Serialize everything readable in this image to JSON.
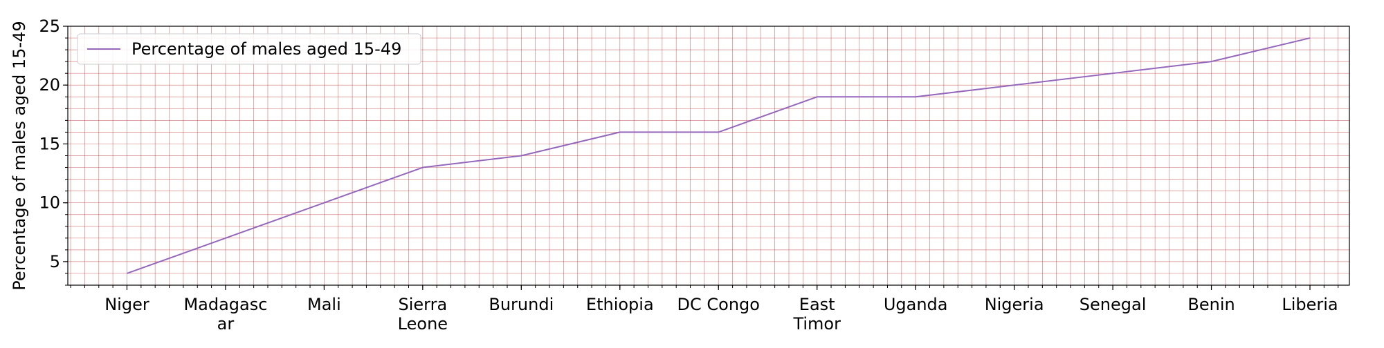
{
  "chart_data": {
    "type": "line",
    "title": "",
    "xlabel": "",
    "ylabel": "Percentage of males aged 15-49",
    "categories": [
      [
        "Niger"
      ],
      [
        "Madagasc",
        "ar"
      ],
      [
        "Mali"
      ],
      [
        "Sierra",
        "Leone"
      ],
      [
        "Burundi"
      ],
      [
        "Ethiopia"
      ],
      [
        "DC Congo"
      ],
      [
        "East",
        "Timor"
      ],
      [
        "Uganda"
      ],
      [
        "Nigeria"
      ],
      [
        "Senegal"
      ],
      [
        "Benin"
      ],
      [
        "Liberia"
      ]
    ],
    "series": [
      {
        "name": "Percentage of males aged 15-49",
        "color": "#9467bd",
        "values": [
          4,
          7,
          10,
          13,
          14,
          16,
          16,
          19,
          19,
          20,
          21,
          22,
          24
        ]
      }
    ],
    "ylim": [
      3,
      25
    ],
    "yticks": [
      5,
      10,
      15,
      20,
      25
    ],
    "grid": true,
    "grid_color": "#b22222",
    "legend": "top-left"
  }
}
